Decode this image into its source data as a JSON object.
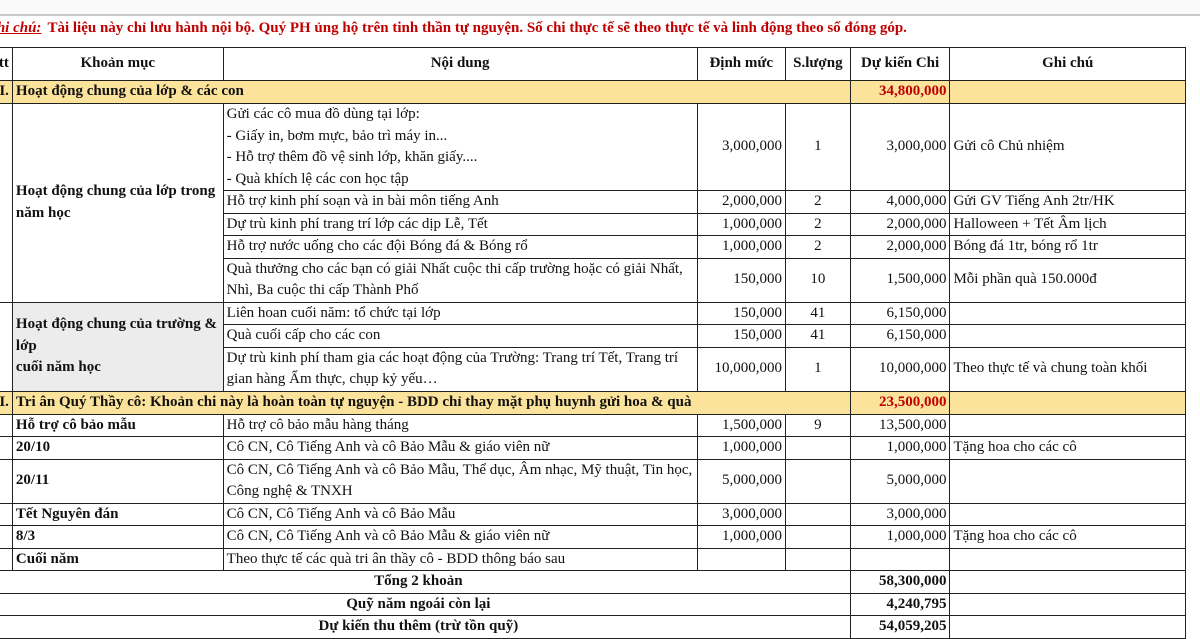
{
  "note": {
    "label": "Ghi chú:",
    "text": "Tài liệu này chỉ lưu hành nội bộ. Quý PH ủng hộ trên tinh thần tự nguyện. Số chi thực tế sẽ theo thực tế và linh động theo số đóng góp."
  },
  "headers": [
    "Stt",
    "Khoản mục",
    "Nội dung",
    "Định mức",
    "S.lượng",
    "Dự kiến Chi",
    "Ghi chú"
  ],
  "sections": [
    {
      "stt": "I.",
      "title": "Hoạt động chung của lớp & các con",
      "total": "34,800,000",
      "groups": [
        {
          "khoan_muc": "Hoạt động chung của lớp trong năm học",
          "shaded": false,
          "items": [
            {
              "noi_dung": "Gửi các cô mua đồ dùng tại lớp:\n- Giấy in, bơm mực, bảo trì máy in...\n- Hỗ trợ thêm đồ vệ sinh lớp, khăn giấy....\n- Quà khích lệ các con học tập",
              "dinh_muc": "3,000,000",
              "so_luong": "1",
              "du_kien": "3,000,000",
              "ghi_chu": "Gửi cô Chủ nhiệm"
            },
            {
              "noi_dung": "Hỗ trợ kinh phí soạn và in bài môn tiếng Anh",
              "dinh_muc": "2,000,000",
              "so_luong": "2",
              "du_kien": "4,000,000",
              "ghi_chu": "Gửi GV Tiếng Anh 2tr/HK"
            },
            {
              "noi_dung": "Dự trù kinh phí trang trí lớp các dịp Lễ, Tết",
              "dinh_muc": "1,000,000",
              "so_luong": "2",
              "du_kien": "2,000,000",
              "ghi_chu": "Halloween + Tết Âm lịch"
            },
            {
              "noi_dung": "Hỗ trợ nước uống cho các đội Bóng đá & Bóng rổ",
              "dinh_muc": "1,000,000",
              "so_luong": "2",
              "du_kien": "2,000,000",
              "ghi_chu": "Bóng đá 1tr, bóng rổ 1tr"
            },
            {
              "noi_dung": "Quà thưởng cho các bạn có giải Nhất cuộc thi cấp trường hoặc có giải Nhất, Nhì, Ba cuộc thi cấp Thành Phố",
              "dinh_muc": "150,000",
              "so_luong": "10",
              "du_kien": "1,500,000",
              "ghi_chu": "Mỗi phần quà 150.000đ"
            }
          ]
        },
        {
          "khoan_muc": "Hoạt động chung của trường & lớp\ncuối năm học",
          "shaded": true,
          "items": [
            {
              "noi_dung": "Liên hoan cuối năm: tổ chức tại lớp",
              "dinh_muc": "150,000",
              "so_luong": "41",
              "du_kien": "6,150,000",
              "ghi_chu": ""
            },
            {
              "noi_dung": "Quà cuối cấp cho các con",
              "dinh_muc": "150,000",
              "so_luong": "41",
              "du_kien": "6,150,000",
              "ghi_chu": ""
            },
            {
              "noi_dung": "Dự trù kinh phí tham gia các hoạt động của Trường: Trang trí Tết, Trang trí gian hàng Ẩm thực, chụp kỷ yếu…",
              "dinh_muc": "10,000,000",
              "so_luong": "1",
              "du_kien": "10,000,000",
              "ghi_chu": "Theo thực tế và chung toàn khối"
            }
          ]
        }
      ]
    },
    {
      "stt": "II.",
      "title": "Tri ân Quý Thầy cô: Khoản chi này là hoàn toàn tự nguyện - BDD chỉ thay mặt phụ huynh gửi hoa & quà",
      "total": "23,500,000",
      "groups": [
        {
          "khoan_muc": "Hỗ trợ cô bảo mẫu",
          "shaded": false,
          "items": [
            {
              "noi_dung": "Hỗ trợ cô bảo mẫu hàng tháng",
              "dinh_muc": "1,500,000",
              "so_luong": "9",
              "du_kien": "13,500,000",
              "ghi_chu": ""
            }
          ]
        },
        {
          "khoan_muc": "20/10",
          "shaded": false,
          "items": [
            {
              "noi_dung": "Cô CN, Cô Tiếng Anh và cô Bảo Mẫu & giáo viên nữ",
              "dinh_muc": "1,000,000",
              "so_luong": "",
              "du_kien": "1,000,000",
              "ghi_chu": "Tặng hoa cho các cô"
            }
          ]
        },
        {
          "khoan_muc": "20/11",
          "shaded": false,
          "items": [
            {
              "noi_dung": "Cô CN, Cô Tiếng Anh và cô Bảo Mẫu, Thể dục, Âm nhạc, Mỹ thuật, Tin học, Công nghệ & TNXH",
              "dinh_muc": "5,000,000",
              "so_luong": "",
              "du_kien": "5,000,000",
              "ghi_chu": ""
            }
          ]
        },
        {
          "khoan_muc": "Tết Nguyên đán",
          "shaded": false,
          "items": [
            {
              "noi_dung": "Cô CN, Cô Tiếng Anh và cô Bảo Mẫu",
              "dinh_muc": "3,000,000",
              "so_luong": "",
              "du_kien": "3,000,000",
              "ghi_chu": ""
            }
          ]
        },
        {
          "khoan_muc": "8/3",
          "shaded": false,
          "items": [
            {
              "noi_dung": "Cô CN, Cô Tiếng Anh và cô Bảo Mẫu & giáo viên nữ",
              "dinh_muc": "1,000,000",
              "so_luong": "",
              "du_kien": "1,000,000",
              "ghi_chu": "Tặng hoa cho các cô"
            }
          ]
        },
        {
          "khoan_muc": "Cuối năm",
          "shaded": false,
          "items": [
            {
              "noi_dung": "Theo thực tế các quà tri ân thầy cô - BDD thông báo sau",
              "dinh_muc": "",
              "so_luong": "",
              "du_kien": "",
              "ghi_chu": ""
            }
          ]
        }
      ]
    }
  ],
  "totals": [
    {
      "label": "Tổng 2 khoản",
      "value": "58,300,000"
    },
    {
      "label": "Quỹ năm ngoái còn lại",
      "value": "4,240,795"
    },
    {
      "label": "Dự kiến thu thêm (trừ tồn quỹ)",
      "value": "54,059,205"
    }
  ],
  "colors": {
    "section_bg": "#fbe39b",
    "note_text": "#c00000",
    "section_total": "#c00000"
  }
}
